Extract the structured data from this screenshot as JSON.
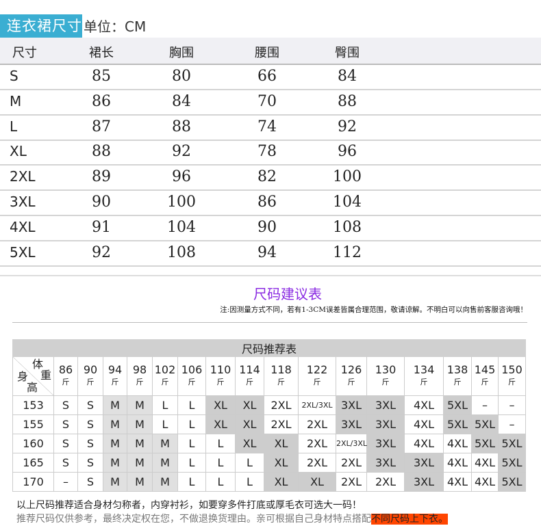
{
  "header": {
    "tag": "连衣裙尺寸",
    "unit": "单位：CM"
  },
  "size_table": {
    "columns": [
      "尺寸",
      "裙长",
      "胸围",
      "腰围",
      "臀围"
    ],
    "rows": [
      [
        "S",
        "85",
        "80",
        "66",
        "84"
      ],
      [
        "M",
        "86",
        "84",
        "70",
        "88"
      ],
      [
        "L",
        "87",
        "88",
        "74",
        "92"
      ],
      [
        "XL",
        "88",
        "92",
        "78",
        "96"
      ],
      [
        "2XL",
        "89",
        "96",
        "82",
        "100"
      ],
      [
        "3XL",
        "90",
        "100",
        "86",
        "104"
      ],
      [
        "4XL",
        "91",
        "104",
        "90",
        "108"
      ],
      [
        "5XL",
        "92",
        "108",
        "94",
        "112"
      ]
    ]
  },
  "advice": {
    "title": "尺码建议表",
    "note": "注:因测量方式不同，若有1-3CM误差皆属合理范围，敬请谅解。不明白可以向售前客服咨询哦！"
  },
  "rec_table": {
    "title": "尺码推荐表",
    "corner": {
      "weight": "体",
      "weight2": "重",
      "height": "身",
      "height2": "高"
    },
    "unit": "斤",
    "weights": [
      "86",
      "90",
      "94",
      "98",
      "102",
      "106",
      "110",
      "114",
      "118",
      "122",
      "126",
      "130",
      "134",
      "138",
      "145",
      "150"
    ],
    "rows": [
      {
        "h": "153",
        "v": [
          "S",
          "S",
          "M",
          "M",
          "L",
          "L",
          "XL",
          "XL",
          "2XL",
          "2XL/3XL",
          "3XL",
          "3XL",
          "4XL",
          "5XL",
          "–",
          "–"
        ],
        "shade": [
          0,
          0,
          1,
          1,
          0,
          0,
          2,
          2,
          0,
          0,
          2,
          2,
          0,
          2,
          0,
          0
        ]
      },
      {
        "h": "155",
        "v": [
          "S",
          "S",
          "M",
          "M",
          "L",
          "L",
          "XL",
          "XL",
          "2XL",
          "2XL",
          "3XL",
          "3XL",
          "4XL",
          "5XL",
          "5XL",
          "–"
        ],
        "shade": [
          0,
          0,
          1,
          1,
          0,
          0,
          2,
          2,
          0,
          0,
          2,
          2,
          0,
          2,
          2,
          0
        ]
      },
      {
        "h": "160",
        "v": [
          "S",
          "S",
          "M",
          "M",
          "M",
          "L",
          "L",
          "XL",
          "XL",
          "2XL",
          "2XL/3XL",
          "3XL",
          "4XL",
          "4XL",
          "5XL",
          "5XL"
        ],
        "shade": [
          0,
          0,
          1,
          1,
          1,
          0,
          0,
          2,
          2,
          0,
          0,
          2,
          0,
          0,
          2,
          2
        ]
      },
      {
        "h": "165",
        "v": [
          "S",
          "S",
          "M",
          "M",
          "M",
          "L",
          "L",
          "L",
          "XL",
          "2XL",
          "2XL",
          "3XL",
          "3XL",
          "4XL",
          "4XL",
          "5XL"
        ],
        "shade": [
          0,
          0,
          1,
          1,
          1,
          0,
          0,
          0,
          2,
          0,
          0,
          2,
          2,
          0,
          0,
          2
        ]
      },
      {
        "h": "170",
        "v": [
          "–",
          "S",
          "M",
          "M",
          "M",
          "L",
          "L",
          "L",
          "XL",
          "XL",
          "2XL",
          "2XL",
          "3XL",
          "4XL",
          "4XL",
          "5XL"
        ],
        "shade": [
          0,
          0,
          1,
          1,
          1,
          0,
          0,
          0,
          2,
          2,
          0,
          0,
          2,
          0,
          0,
          2
        ]
      }
    ]
  },
  "footer": {
    "line1": "以上尺码推荐适合身材匀称者，内穿衬衫，如要穿多件打底或厚毛衣可选大一码！",
    "line2": "推荐尺码仅供参考，最终决定权在您，不做退换货理由。亲可根据自己身材特点搭配",
    "highlight": "不同尺码上下衣。"
  },
  "colors": {
    "tag": "#3aaed2",
    "title": "#8a2be2",
    "highlight": "#ff4500"
  }
}
